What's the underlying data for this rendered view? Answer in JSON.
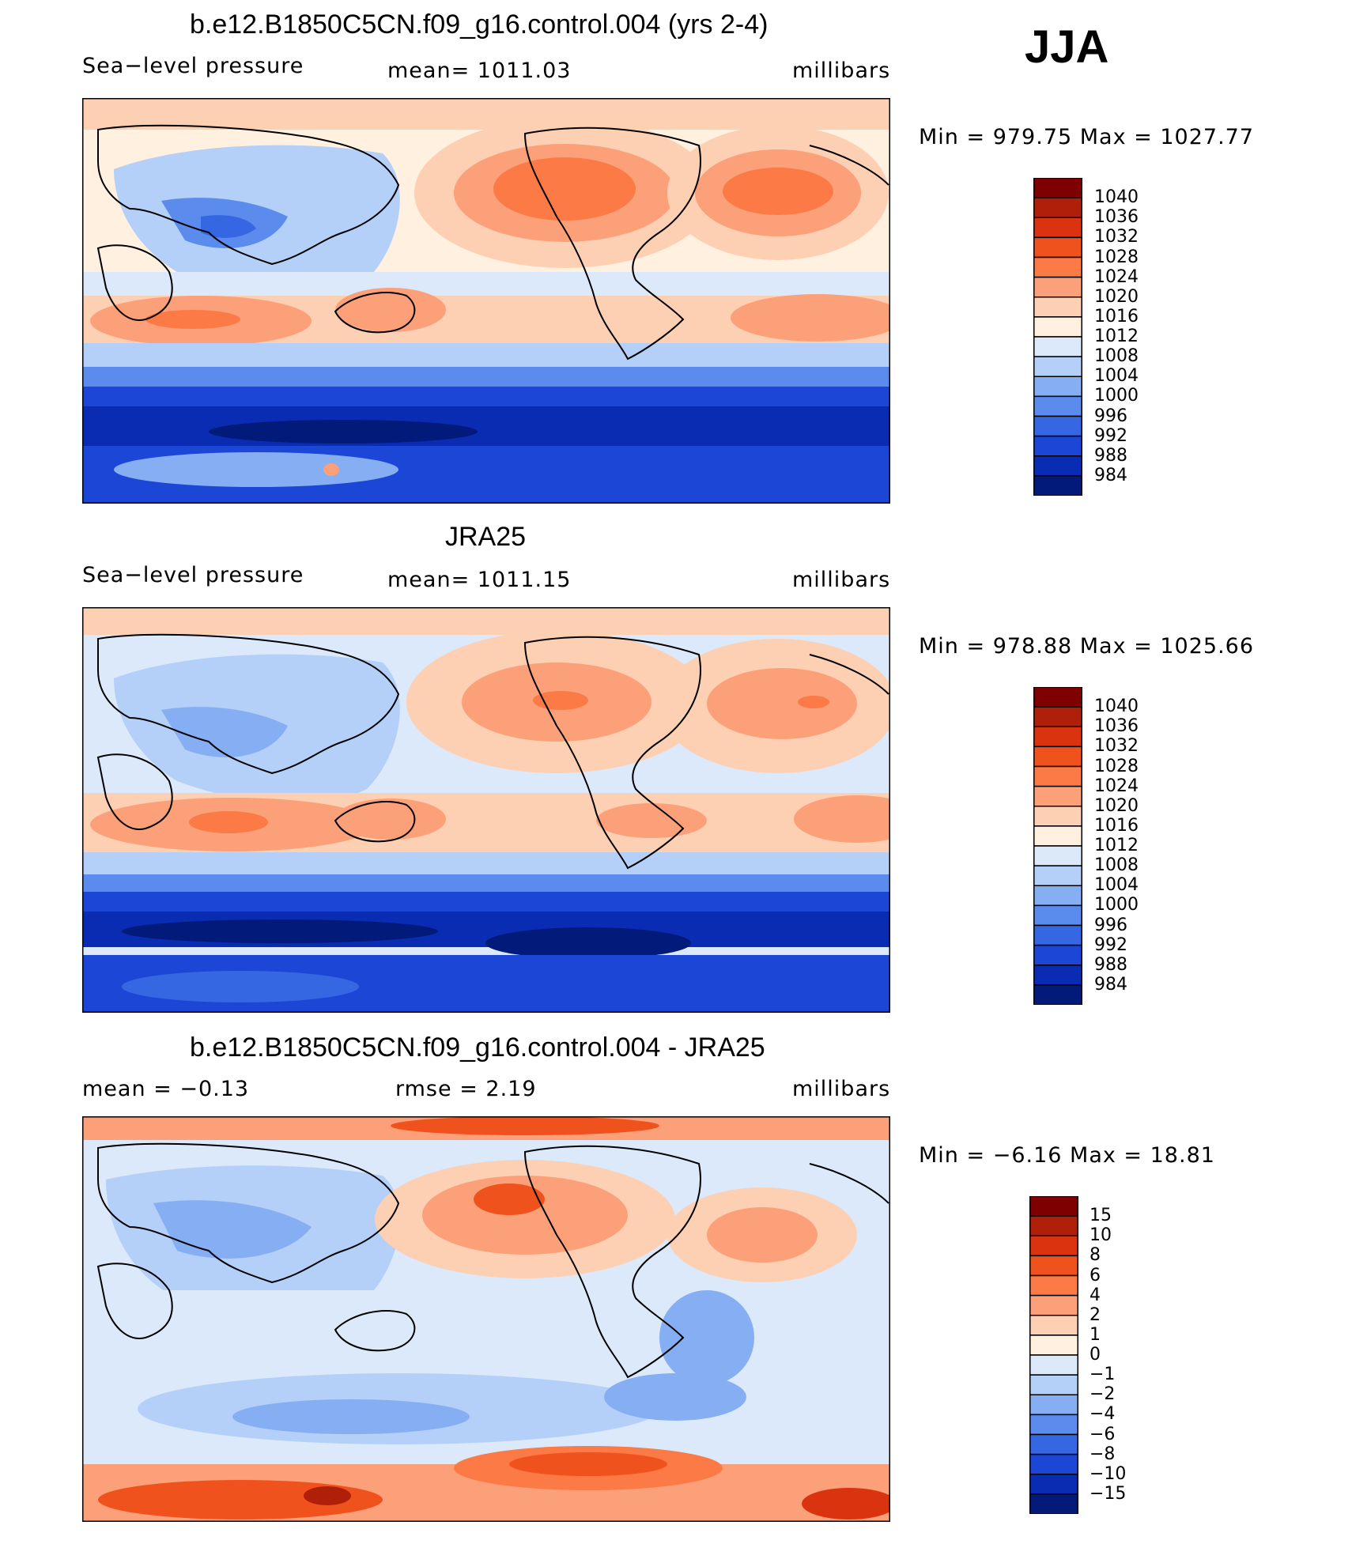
{
  "season": "JJA",
  "levels_abs": [
    "1040",
    "1036",
    "1032",
    "1028",
    "1024",
    "1020",
    "1016",
    "1012",
    "1008",
    "1004",
    "1000",
    "996",
    "992",
    "988",
    "984"
  ],
  "colors_abs": [
    "#7f0000",
    "#b01f0a",
    "#d9330f",
    "#f0521e",
    "#fb7a46",
    "#fca07a",
    "#fdd0b4",
    "#fff0e0",
    "#dbe9fb",
    "#b4cff8",
    "#86aef3",
    "#5b8bec",
    "#3567e3",
    "#1c46d6",
    "#0a2cb3",
    "#021a7a"
  ],
  "levels_diff": [
    "15",
    "10",
    "8",
    "6",
    "4",
    "2",
    "1",
    "0",
    "−1",
    "−2",
    "−4",
    "−6",
    "−8",
    "−10",
    "−15"
  ],
  "colors_diff": [
    "#7f0000",
    "#b01f0a",
    "#d9330f",
    "#f0521e",
    "#fb7a46",
    "#fca07a",
    "#fdd0b4",
    "#fff0e0",
    "#dbe9fb",
    "#b4cff8",
    "#86aef3",
    "#5b8bec",
    "#3567e3",
    "#1c46d6",
    "#0a2cb3",
    "#021a7a"
  ],
  "panels": [
    {
      "title": "b.e12.B1850C5CN.f09_g16.control.004 (yrs 2-4)",
      "left": "Sea−level pressure",
      "center": "mean=  1011.03",
      "right": "millibars",
      "minmax": "Min  =  979.75  Max  =  1027.77"
    },
    {
      "title": "JRA25",
      "left": "Sea−level pressure",
      "center": "mean=  1011.15",
      "right": "millibars",
      "minmax": "Min  =  978.88  Max  =  1025.66"
    },
    {
      "title": "b.e12.B1850C5CN.f09_g16.control.004 - JRA25",
      "left": "mean  =    −0.13",
      "center": "rmse  =      2.19",
      "right": "millibars",
      "minmax": "Min  =    −6.16  Max  =    18.81"
    }
  ]
}
